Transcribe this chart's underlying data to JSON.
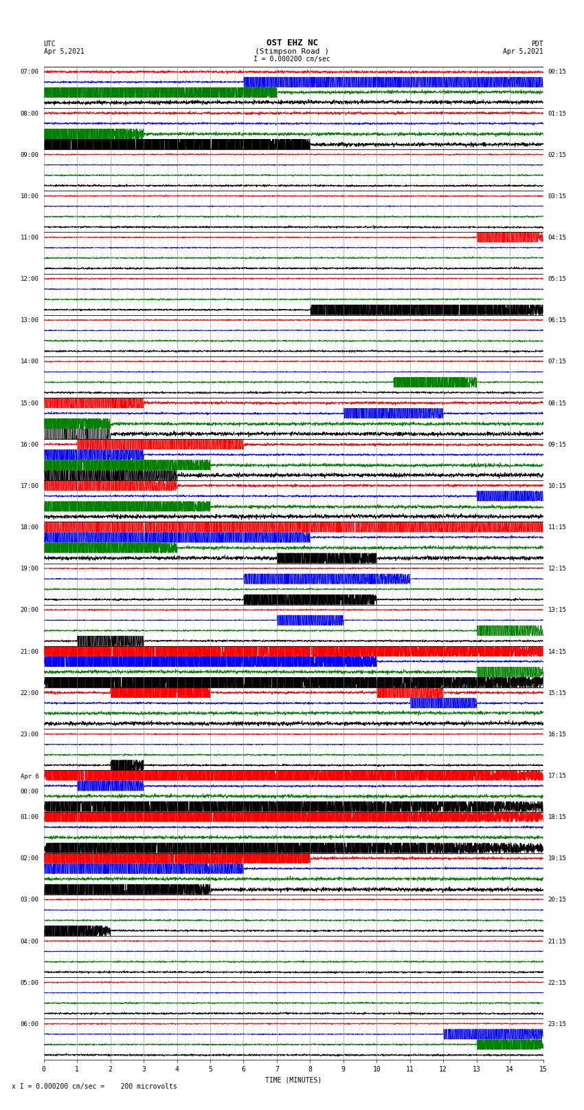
{
  "title_line1": "OST EHZ NC",
  "title_line2": "(Stimpson Road )",
  "scale_label": "I = 0.000200 cm/sec",
  "footer_label": "x I = 0.000200 cm/sec =    200 microvolts",
  "utc_label": "UTC",
  "utc_date": "Apr 5,2021",
  "pdt_label": "PDT",
  "pdt_date": "Apr 5,2021",
  "xlabel": "TIME (MINUTES)",
  "bg_color": "#ffffff",
  "trace_colors": [
    "#ff0000",
    "#0000ff",
    "#008000",
    "#000000"
  ],
  "n_rows": 24,
  "minutes_per_row": 15,
  "left_times": [
    "07:00",
    "08:00",
    "09:00",
    "10:00",
    "11:00",
    "12:00",
    "13:00",
    "14:00",
    "15:00",
    "16:00",
    "17:00",
    "18:00",
    "19:00",
    "20:00",
    "21:00",
    "22:00",
    "23:00",
    "Apr 6\n00:00",
    "01:00",
    "02:00",
    "03:00",
    "04:00",
    "05:00",
    "06:00"
  ],
  "right_times": [
    "00:15",
    "01:15",
    "02:15",
    "03:15",
    "04:15",
    "05:15",
    "06:15",
    "07:15",
    "08:15",
    "09:15",
    "10:15",
    "11:15",
    "12:15",
    "13:15",
    "14:15",
    "15:15",
    "16:15",
    "17:15",
    "18:15",
    "19:15",
    "20:15",
    "21:15",
    "22:15",
    "23:15"
  ],
  "grid_color": "#808080",
  "row_separator_color": "#000000",
  "font_size_title": 9,
  "font_size_labels": 7,
  "font_size_ticks": 7,
  "figsize": [
    8.5,
    16.13
  ],
  "dpi": 100
}
